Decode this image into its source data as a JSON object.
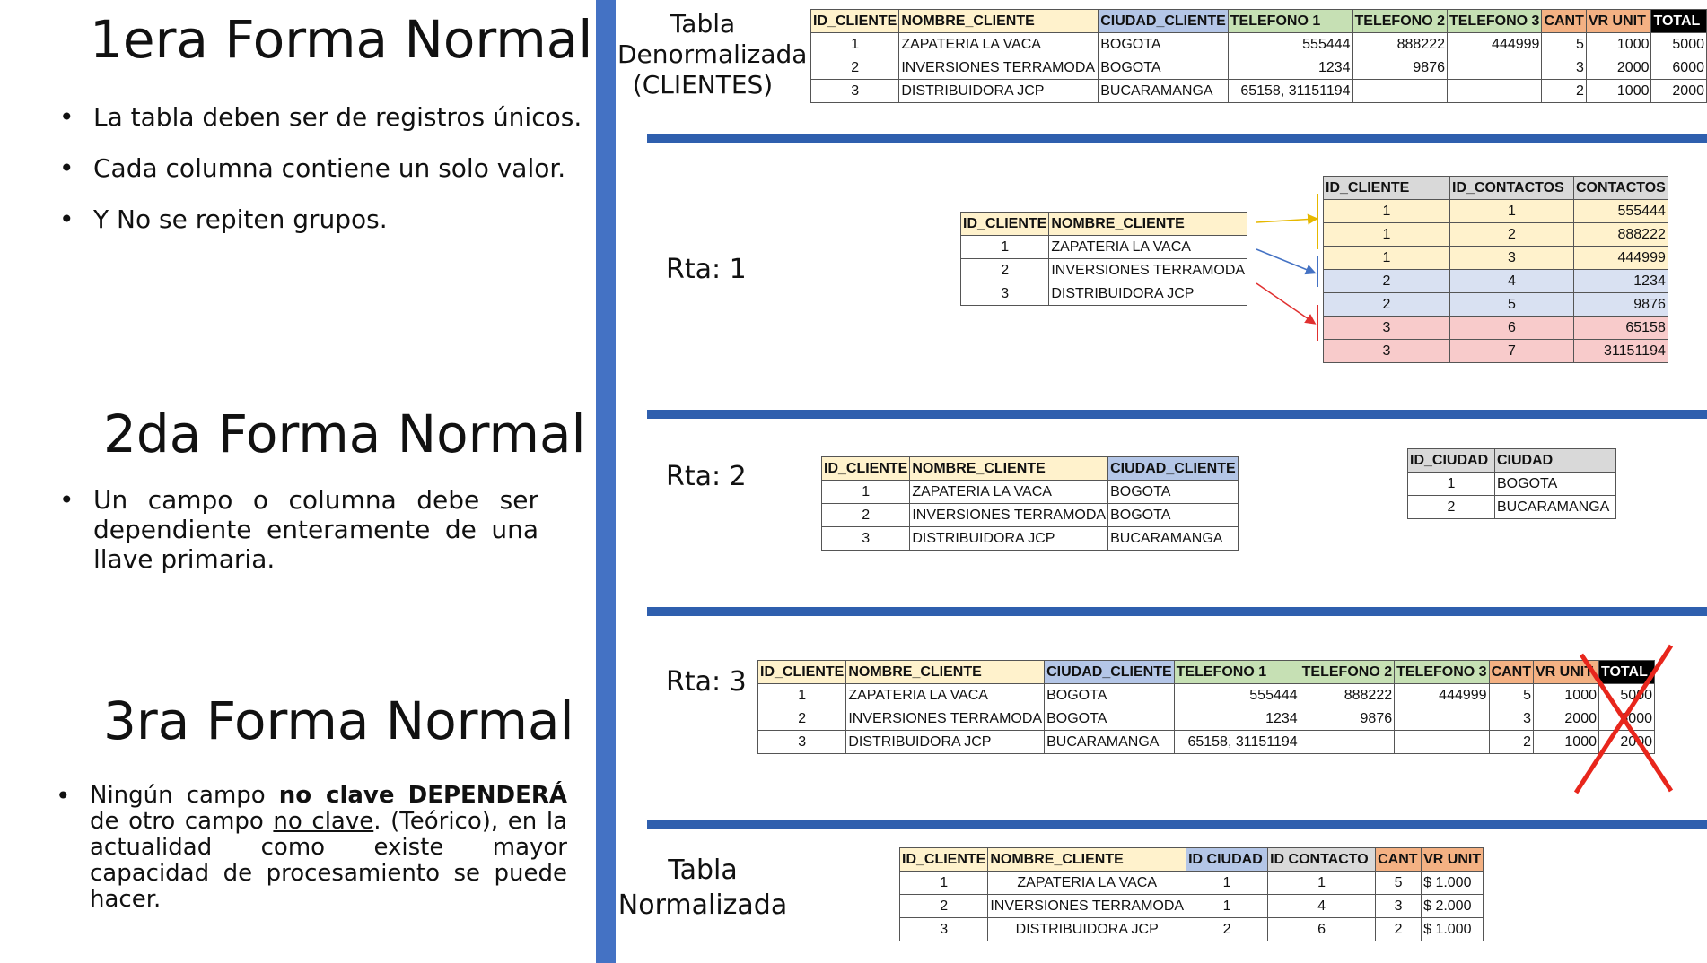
{
  "left": {
    "first_nf": {
      "title": "1era Forma Normal",
      "bullets": [
        "La tabla deben ser de registros únicos.",
        "Cada columna contiene un solo valor.",
        "Y No se repiten grupos."
      ]
    },
    "second_nf": {
      "title": "2da Forma Normal",
      "bullet": "Un campo o columna debe ser dependiente enteramente de una llave primaria."
    },
    "third_nf": {
      "title": "3ra Forma Normal",
      "bullet_parts": {
        "p1": "Ningún campo ",
        "p2": "no clave",
        "p3": " ",
        "p4": "DEPENDERÁ",
        "p5": " de otro campo ",
        "p6": "no clave",
        "p7": ". (Teórico), en la actualidad como existe mayor capacidad de procesamiento se puede hacer."
      }
    }
  },
  "labels": {
    "denorm_l1": "Tabla",
    "denorm_l2": "Denormalizada",
    "denorm_l3": "(CLIENTES)",
    "rta1": "Rta: 1",
    "rta2": "Rta: 2",
    "rta3": "Rta: 3",
    "norm_l1": "Tabla",
    "norm_l2": "Normalizada"
  },
  "colors": {
    "accent_blue": "#4472c4",
    "header_yellow": "#fff2cc",
    "header_blue": "#b4c6e7",
    "header_green": "#c6e0b4",
    "header_orange": "#f4b183",
    "cross_red": "#e8261c"
  },
  "full_table": {
    "headers": [
      "ID_CLIENTE",
      "NOMBRE_CLIENTE",
      "CIUDAD_CLIENTE",
      "TELEFONO 1",
      "TELEFONO 2",
      "TELEFONO 3",
      "CANT",
      "VR UNIT",
      "TOTAL"
    ],
    "rows": [
      [
        "1",
        "ZAPATERIA LA VACA",
        "BOGOTA",
        "555444",
        "888222",
        "444999",
        "5",
        "1000",
        "5000"
      ],
      [
        "2",
        "INVERSIONES TERRAMODA",
        "BOGOTA",
        "1234",
        "9876",
        "",
        "3",
        "2000",
        "6000"
      ],
      [
        "3",
        "DISTRIBUIDORA JCP",
        "BUCARAMANGA",
        "65158, 31151194",
        "",
        "",
        "2",
        "1000",
        "2000"
      ]
    ]
  },
  "rta1_clients": {
    "headers": [
      "ID_CLIENTE",
      "NOMBRE_CLIENTE"
    ],
    "rows": [
      [
        "1",
        "ZAPATERIA LA VACA"
      ],
      [
        "2",
        "INVERSIONES TERRAMODA"
      ],
      [
        "3",
        "DISTRIBUIDORA JCP"
      ]
    ]
  },
  "rta1_contacts": {
    "headers": [
      "ID_CLIENTE",
      "ID_CONTACTOS",
      "CONTACTOS"
    ],
    "rows": [
      [
        "1",
        "1",
        "555444"
      ],
      [
        "1",
        "2",
        "888222"
      ],
      [
        "1",
        "3",
        "444999"
      ],
      [
        "2",
        "4",
        "1234"
      ],
      [
        "2",
        "5",
        "9876"
      ],
      [
        "3",
        "6",
        "65158"
      ],
      [
        "3",
        "7",
        "31151194"
      ]
    ]
  },
  "rta2_clients": {
    "headers": [
      "ID_CLIENTE",
      "NOMBRE_CLIENTE",
      "CIUDAD_CLIENTE"
    ],
    "rows": [
      [
        "1",
        "ZAPATERIA LA VACA",
        "BOGOTA"
      ],
      [
        "2",
        "INVERSIONES TERRAMODA",
        "BOGOTA"
      ],
      [
        "3",
        "DISTRIBUIDORA JCP",
        "BUCARAMANGA"
      ]
    ]
  },
  "rta2_cities": {
    "headers": [
      "ID_CIUDAD",
      "CIUDAD"
    ],
    "rows": [
      [
        "1",
        "BOGOTA"
      ],
      [
        "2",
        "BUCARAMANGA"
      ]
    ]
  },
  "rta3_table": {
    "headers": [
      "ID_CLIENTE",
      "NOMBRE_CLIENTE",
      "CIUDAD_CLIENTE",
      "TELEFONO 1",
      "TELEFONO 2",
      "TELEFONO 3",
      "CANT",
      "VR UNIT",
      "TOTAL"
    ],
    "rows": [
      [
        "1",
        "ZAPATERIA LA VACA",
        "BOGOTA",
        "555444",
        "888222",
        "444999",
        "5",
        "1000",
        "5000"
      ],
      [
        "2",
        "INVERSIONES TERRAMODA",
        "BOGOTA",
        "1234",
        "9876",
        "",
        "3",
        "2000",
        "6000"
      ],
      [
        "3",
        "DISTRIBUIDORA JCP",
        "BUCARAMANGA",
        "65158, 31151194",
        "",
        "",
        "2",
        "1000",
        "2000"
      ]
    ]
  },
  "normalized_table": {
    "headers": [
      "ID_CLIENTE",
      "NOMBRE_CLIENTE",
      "ID CIUDAD",
      "ID CONTACTO",
      "CANT",
      "VR UNIT"
    ],
    "rows": [
      [
        "1",
        "ZAPATERIA LA VACA",
        "1",
        "1",
        "5",
        "$ 1.000"
      ],
      [
        "2",
        "INVERSIONES TERRAMODA",
        "1",
        "4",
        "3",
        "$ 2.000"
      ],
      [
        "3",
        "DISTRIBUIDORA JCP",
        "2",
        "6",
        "2",
        "$ 1.000"
      ]
    ]
  }
}
